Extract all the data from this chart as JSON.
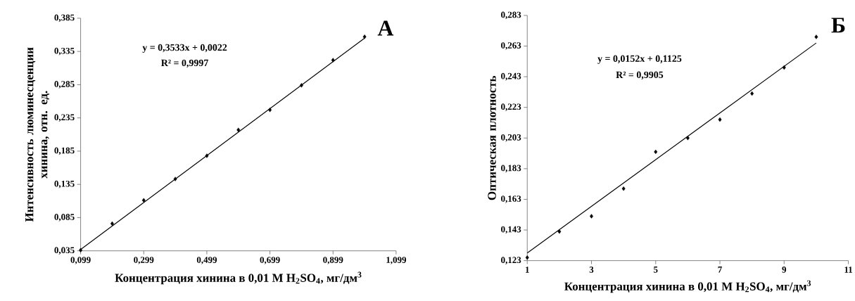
{
  "chart_data": [
    {
      "type": "scatter",
      "title": "А",
      "xlabel": "Концентрация хинина в 0,01 М H$_{2}$SO$_{4}$, мг/дм$^{3}$",
      "ylabel": "Интенсивность люминесценции хинина, отн. ед.",
      "annotations": [
        "y = 0,3533x + 0,0022",
        "R² = 0,9997"
      ],
      "xlim": [
        0.099,
        1.099
      ],
      "ylim": [
        0.035,
        0.385
      ],
      "xticks": [
        {
          "value": 0.099,
          "label": "0,099"
        },
        {
          "value": 0.299,
          "label": "0,299"
        },
        {
          "value": 0.499,
          "label": "0,499"
        },
        {
          "value": 0.699,
          "label": "0,699"
        },
        {
          "value": 0.899,
          "label": "0,899"
        },
        {
          "value": 1.099,
          "label": "1,099"
        }
      ],
      "yticks": [
        {
          "value": 0.035,
          "label": "0,035"
        },
        {
          "value": 0.085,
          "label": "0,085"
        },
        {
          "value": 0.135,
          "label": "0,135"
        },
        {
          "value": 0.185,
          "label": "0,185"
        },
        {
          "value": 0.235,
          "label": "0,235"
        },
        {
          "value": 0.285,
          "label": "0,285"
        },
        {
          "value": 0.335,
          "label": "0,335"
        },
        {
          "value": 0.385,
          "label": "0,385"
        }
      ],
      "marker": "diamond",
      "series": [
        {
          "color": "#000000",
          "x": [
            0.099,
            0.199,
            0.299,
            0.399,
            0.499,
            0.599,
            0.699,
            0.799,
            0.899,
            0.999
          ],
          "values": [
            0.036,
            0.076,
            0.111,
            0.143,
            0.178,
            0.217,
            0.247,
            0.284,
            0.322,
            0.357
          ]
        },
        {
          "type": "line",
          "marker": "none",
          "color": "#000000",
          "x": [
            0.099,
            0.999
          ],
          "values": [
            0.037,
            0.355
          ]
        }
      ]
    },
    {
      "type": "scatter",
      "title": "Б",
      "xlabel": "Концентрация хинина в 0,01 М H$_{2}$SO$_{4}$, мг/дм$^{3}$",
      "ylabel": "Оптическая плотность",
      "annotations": [
        "y = 0,0152x + 0,1125",
        "R² = 0,9905"
      ],
      "xlim": [
        1,
        11
      ],
      "ylim": [
        0.123,
        0.283
      ],
      "xticks": [
        1,
        3,
        5,
        7,
        9,
        11
      ],
      "yticks": [
        {
          "value": 0.123,
          "label": "0,123"
        },
        {
          "value": 0.143,
          "label": "0,143"
        },
        {
          "value": 0.163,
          "label": "0,163"
        },
        {
          "value": 0.183,
          "label": "0,183"
        },
        {
          "value": 0.203,
          "label": "0,203"
        },
        {
          "value": 0.223,
          "label": "0,223"
        },
        {
          "value": 0.243,
          "label": "0,243"
        },
        {
          "value": 0.263,
          "label": "0,263"
        },
        {
          "value": 0.283,
          "label": "0,283"
        }
      ],
      "marker": "diamond",
      "series": [
        {
          "color": "#000000",
          "x": [
            1,
            2,
            3,
            4,
            5,
            6,
            7,
            8,
            9,
            10
          ],
          "values": [
            0.125,
            0.142,
            0.152,
            0.17,
            0.194,
            0.203,
            0.215,
            0.232,
            0.249,
            0.269
          ]
        },
        {
          "type": "line",
          "marker": "none",
          "color": "#000000",
          "x": [
            1,
            10
          ],
          "values": [
            0.128,
            0.265
          ]
        }
      ]
    }
  ]
}
